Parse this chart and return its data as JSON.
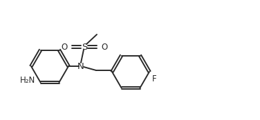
{
  "bg_color": "#ffffff",
  "line_color": "#2a2a2a",
  "line_width": 1.4,
  "font_size": 8.5,
  "figure_size": [
    3.76,
    1.74
  ],
  "dpi": 100,
  "xlim": [
    0.0,
    3.76
  ],
  "ylim": [
    0.0,
    1.74
  ]
}
